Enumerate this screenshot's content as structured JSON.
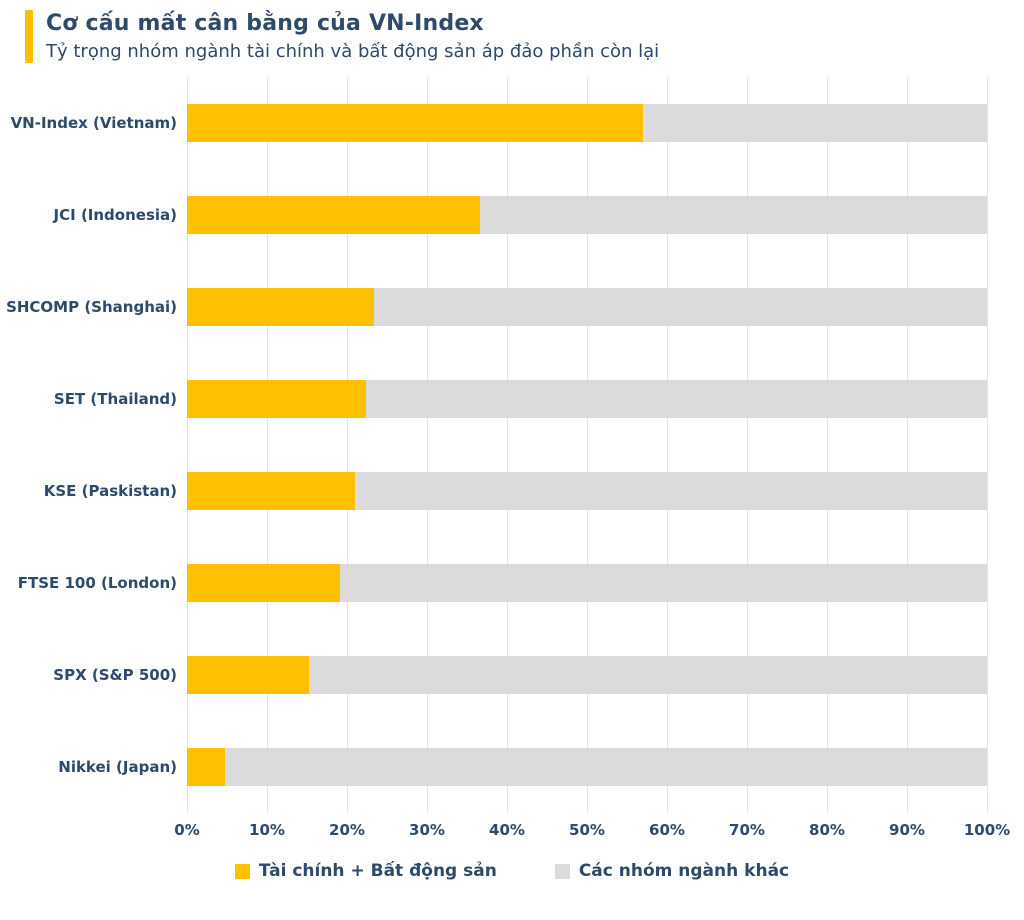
{
  "header": {
    "title": "Cơ cấu mất cân bằng của VN-Index",
    "subtitle": "Tỷ trọng nhóm ngành tài chính và bất động sản áp đảo phần còn lại",
    "accent_color": "#FFC000"
  },
  "colors": {
    "text_navy": "#2E4A6B",
    "gridline": "#E4E4E4",
    "series_finance": "#FFC000",
    "series_other": "#DBDBDB"
  },
  "chart_data": {
    "type": "bar",
    "orientation": "horizontal",
    "stacked": true,
    "title": "Cơ cấu mất cân bằng của VN-Index",
    "subtitle": "Tỷ trọng nhóm ngành tài chính và bất động sản áp đảo phần còn lại",
    "categories": [
      "VN-Index (Vietnam)",
      "JCI (Indonesia)",
      "SHCOMP (Shanghai)",
      "SET (Thailand)",
      "KSE (Paskistan)",
      "FTSE 100 (London)",
      "SPX (S&P 500)",
      "Nikkei (Japan)"
    ],
    "series": [
      {
        "name": "Tài chính + Bất động sản",
        "color": "#FFC000",
        "values": [
          57,
          36.6,
          23.4,
          22.4,
          21,
          19.1,
          15.3,
          4.7
        ]
      },
      {
        "name": "Các nhóm ngành khác",
        "color": "#DBDBDB",
        "values": [
          43,
          63.4,
          76.6,
          77.6,
          79,
          80.9,
          84.7,
          95.3
        ]
      }
    ],
    "xlabel": "",
    "ylabel": "",
    "xlim": [
      0,
      100
    ],
    "x_tick_values": [
      0,
      10,
      20,
      30,
      40,
      50,
      60,
      70,
      80,
      90,
      100
    ],
    "x_tick_labels": [
      "0%",
      "10%",
      "20%",
      "30%",
      "40%",
      "50%",
      "60%",
      "70%",
      "80%",
      "90%",
      "100%"
    ],
    "grid": "vertical",
    "legend_position": "bottom"
  }
}
